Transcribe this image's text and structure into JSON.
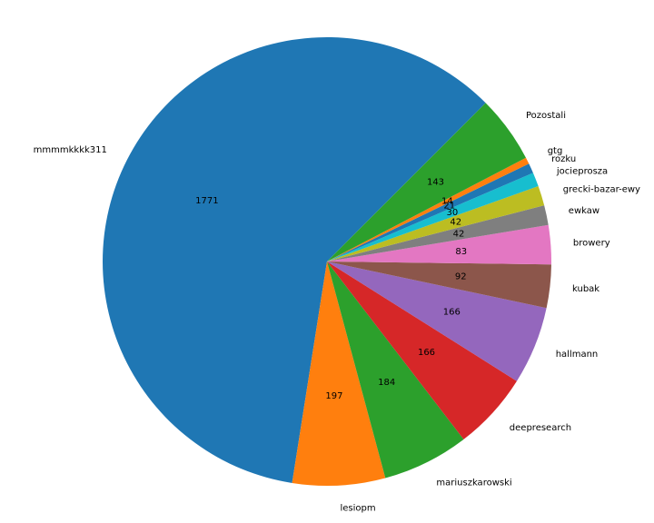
{
  "chart_data": {
    "type": "pie",
    "title": "",
    "start_angle_deg": 45,
    "direction": "counterclockwise",
    "slices": [
      {
        "label": "mmmmkkkk311",
        "value": 1771,
        "color": "#1f77b4"
      },
      {
        "label": "lesiopm",
        "value": 197,
        "color": "#ff7f0e"
      },
      {
        "label": "mariuszkarowski",
        "value": 184,
        "color": "#2ca02c"
      },
      {
        "label": "deepresearch",
        "value": 166,
        "color": "#d62728"
      },
      {
        "label": "hallmann",
        "value": 166,
        "color": "#9467bd"
      },
      {
        "label": "kubak",
        "value": 92,
        "color": "#8c564b"
      },
      {
        "label": "browery",
        "value": 83,
        "color": "#e377c2"
      },
      {
        "label": "ewkaw",
        "value": 42,
        "color": "#7f7f7f"
      },
      {
        "label": "grecki-bazar-ewy",
        "value": 42,
        "color": "#bcbd22"
      },
      {
        "label": "jocieprosza",
        "value": 30,
        "color": "#17becf"
      },
      {
        "label": "rozku",
        "value": 21,
        "color": "#1f77b4"
      },
      {
        "label": "gtg",
        "value": 14,
        "color": "#ff7f0e"
      },
      {
        "label": "Pozostali",
        "value": 143,
        "color": "#2ca02c"
      }
    ]
  }
}
